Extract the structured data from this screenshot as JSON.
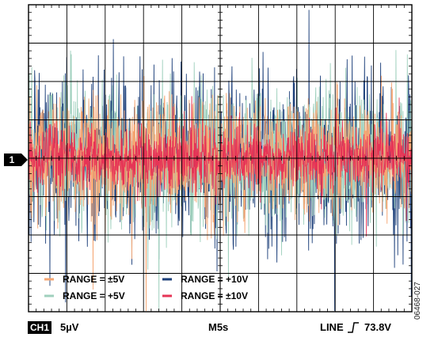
{
  "chart_data": {
    "type": "line",
    "title": "",
    "xlabel": "",
    "ylabel": "",
    "grid": true,
    "divisions": {
      "x": 10,
      "y": 8
    },
    "y_units": "µV",
    "ylim_div": [
      -4,
      4
    ],
    "marker_label": "1",
    "legend": {
      "placement": "bottom-left",
      "columns": 2
    },
    "series": [
      {
        "name": "RANGE = ±5V",
        "color": "#f5a673",
        "amplitude_div": 1.55,
        "draw_order": 2
      },
      {
        "name": "RANGE = +5V",
        "color": "#9fd0bd",
        "amplitude_div": 1.85,
        "draw_order": 1
      },
      {
        "name": "RANGE = +10V",
        "color": "#1c3f7a",
        "amplitude_div": 2.1,
        "draw_order": 0
      },
      {
        "name": "RANGE = ±10V",
        "color": "#e63456",
        "amplitude_div": 0.85,
        "draw_order": 3
      }
    ]
  },
  "footer": {
    "channel": "CH1",
    "scale": "5µV",
    "timebase": "M5s",
    "trigger": "LINE",
    "trigger_level": "73.8V"
  },
  "figure_id": "06468-027"
}
